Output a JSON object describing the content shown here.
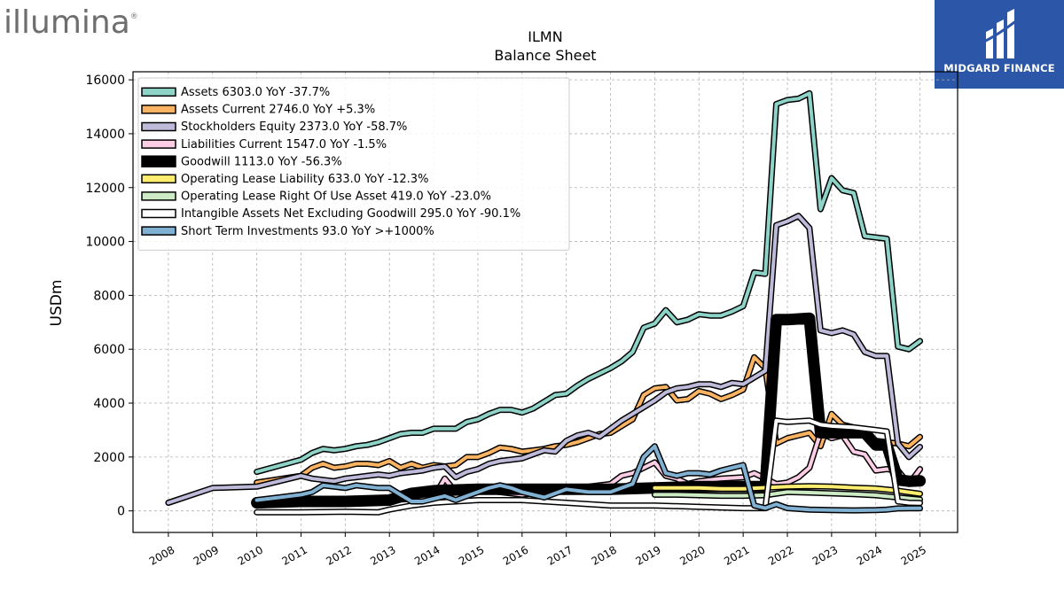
{
  "logos": {
    "left": "illumina",
    "right": "MIDGARD FINANCE"
  },
  "chart_data": {
    "type": "line",
    "title": "ILMN",
    "subtitle": "Balance  Sheet",
    "ylabel": "USDm",
    "xlabel": "",
    "ylim": [
      -800,
      16300
    ],
    "xlim": [
      2007.2,
      2025.85
    ],
    "yticks": [
      0,
      2000,
      4000,
      6000,
      8000,
      10000,
      12000,
      14000,
      16000
    ],
    "xticks": [
      2008,
      2009,
      2010,
      2011,
      2012,
      2013,
      2014,
      2015,
      2016,
      2017,
      2018,
      2019,
      2020,
      2021,
      2022,
      2023,
      2024,
      2025
    ],
    "grid": true,
    "legend_position": "top-left",
    "series": [
      {
        "name": "Assets  6303.0 YoY -37.7%",
        "color": "#8dd3c7",
        "width": 4,
        "x": [
          2010.0,
          2011.0,
          2011.25,
          2011.5,
          2011.75,
          2012.0,
          2012.25,
          2012.5,
          2012.75,
          2013.0,
          2013.25,
          2013.5,
          2013.75,
          2014.0,
          2014.25,
          2014.5,
          2014.75,
          2015.0,
          2015.25,
          2015.5,
          2015.75,
          2016.0,
          2016.25,
          2016.5,
          2016.75,
          2017.0,
          2017.25,
          2017.5,
          2017.75,
          2018.0,
          2018.25,
          2018.5,
          2018.75,
          2019.0,
          2019.25,
          2019.5,
          2019.75,
          2020.0,
          2020.25,
          2020.5,
          2020.75,
          2021.0,
          2021.25,
          2021.5,
          2021.75,
          2022.0,
          2022.25,
          2022.5,
          2022.75,
          2023.0,
          2023.25,
          2023.5,
          2023.75,
          2024.0,
          2024.25,
          2024.5,
          2024.75,
          2025.0
        ],
        "values": [
          1450,
          1900,
          2150,
          2300,
          2250,
          2300,
          2400,
          2450,
          2550,
          2700,
          2850,
          2900,
          2900,
          3050,
          3050,
          3050,
          3300,
          3400,
          3600,
          3750,
          3750,
          3650,
          3800,
          4050,
          4300,
          4350,
          4650,
          4900,
          5100,
          5300,
          5550,
          5900,
          6800,
          6950,
          7450,
          7000,
          7100,
          7300,
          7250,
          7250,
          7400,
          7600,
          8850,
          8800,
          15100,
          15250,
          15300,
          15500,
          11200,
          12350,
          11900,
          11800,
          10200,
          10150,
          10100,
          6100,
          6000,
          6303
        ]
      },
      {
        "name": "Assets Current  2746.0 YoY +5.3%",
        "color": "#fdb462",
        "width": 4,
        "x": [
          2010.0,
          2011.0,
          2011.25,
          2011.5,
          2011.75,
          2012.0,
          2012.25,
          2012.5,
          2012.75,
          2013.0,
          2013.25,
          2013.5,
          2013.75,
          2014.0,
          2014.25,
          2014.5,
          2014.75,
          2015.0,
          2015.25,
          2015.5,
          2015.75,
          2016.0,
          2016.25,
          2016.5,
          2016.75,
          2017.0,
          2017.25,
          2017.5,
          2017.75,
          2018.0,
          2018.25,
          2018.5,
          2018.75,
          2019.0,
          2019.25,
          2019.5,
          2019.75,
          2020.0,
          2020.25,
          2020.5,
          2020.75,
          2021.0,
          2021.25,
          2021.5,
          2021.75,
          2022.0,
          2022.25,
          2022.5,
          2022.75,
          2023.0,
          2023.25,
          2023.5,
          2023.75,
          2024.0,
          2024.25,
          2024.5,
          2024.75,
          2025.0
        ],
        "values": [
          1050,
          1300,
          1600,
          1750,
          1600,
          1650,
          1750,
          1750,
          1700,
          1850,
          1600,
          1750,
          1600,
          1700,
          1650,
          1700,
          2000,
          2000,
          2150,
          2350,
          2300,
          2200,
          2250,
          2300,
          2400,
          2450,
          2550,
          2700,
          2850,
          2900,
          3150,
          3400,
          4300,
          4550,
          4600,
          4100,
          4150,
          4450,
          4350,
          4150,
          4300,
          4500,
          5700,
          5300,
          2500,
          2700,
          2800,
          2900,
          2400,
          3600,
          3200,
          3100,
          2900,
          2600,
          2550,
          2500,
          2400,
          2746
        ]
      },
      {
        "name": "Stockholders Equity  2373.0 YoY -58.7%",
        "color": "#bebada",
        "width": 4,
        "x": [
          2008.0,
          2009.0,
          2010.0,
          2011.0,
          2011.25,
          2011.5,
          2011.75,
          2012.0,
          2012.25,
          2012.5,
          2012.75,
          2013.0,
          2013.25,
          2013.5,
          2013.75,
          2014.0,
          2014.25,
          2014.5,
          2014.75,
          2015.0,
          2015.25,
          2015.5,
          2015.75,
          2016.0,
          2016.25,
          2016.5,
          2016.75,
          2017.0,
          2017.25,
          2017.5,
          2017.75,
          2018.0,
          2018.25,
          2018.5,
          2018.75,
          2019.0,
          2019.25,
          2019.5,
          2019.75,
          2020.0,
          2020.25,
          2020.5,
          2020.75,
          2021.0,
          2021.25,
          2021.5,
          2021.75,
          2022.0,
          2022.25,
          2022.5,
          2022.75,
          2023.0,
          2023.25,
          2023.5,
          2023.75,
          2024.0,
          2024.25,
          2024.5,
          2024.75,
          2025.0
        ],
        "values": [
          300,
          850,
          900,
          1300,
          1200,
          1150,
          1100,
          1200,
          1250,
          1300,
          1350,
          1300,
          1400,
          1450,
          1500,
          1600,
          1650,
          1250,
          1450,
          1550,
          1750,
          1850,
          1900,
          1950,
          2100,
          2250,
          2200,
          2600,
          2800,
          2900,
          2750,
          3050,
          3350,
          3600,
          3850,
          4100,
          4400,
          4550,
          4600,
          4700,
          4700,
          4600,
          4750,
          4700,
          4950,
          5200,
          10600,
          10750,
          10950,
          10500,
          6700,
          6600,
          6700,
          6550,
          5900,
          5750,
          5750,
          2500,
          2000,
          2373
        ]
      },
      {
        "name": "Liabilities Current  1547.0 YoY -1.5%",
        "color": "#fccde5",
        "width": 4,
        "x": [
          2010.0,
          2011.0,
          2011.5,
          2012.0,
          2012.5,
          2013.0,
          2013.5,
          2014.0,
          2014.25,
          2014.5,
          2014.75,
          2015.0,
          2015.5,
          2016.0,
          2016.5,
          2017.0,
          2017.5,
          2018.0,
          2018.25,
          2018.5,
          2018.75,
          2019.0,
          2019.25,
          2019.5,
          2019.75,
          2020.0,
          2020.5,
          2021.0,
          2021.25,
          2021.5,
          2021.75,
          2022.0,
          2022.25,
          2022.5,
          2022.75,
          2023.0,
          2023.25,
          2023.5,
          2023.75,
          2024.0,
          2024.25,
          2024.5,
          2024.75,
          2025.0
        ],
        "values": [
          200,
          300,
          300,
          350,
          350,
          400,
          450,
          500,
          1200,
          700,
          700,
          800,
          700,
          600,
          700,
          750,
          900,
          1000,
          1300,
          1400,
          1600,
          1800,
          1300,
          1200,
          1000,
          1100,
          1200,
          1250,
          1400,
          1200,
          1000,
          1050,
          1250,
          1600,
          2900,
          2700,
          2800,
          2200,
          2100,
          1500,
          1550,
          1500,
          1000,
          1547
        ]
      },
      {
        "name": "Goodwill  1113.0 YoY -56.3%",
        "color": "#000000",
        "width": 10,
        "x": [
          2010.0,
          2011.0,
          2012.0,
          2013.0,
          2013.5,
          2014.0,
          2015.0,
          2016.0,
          2017.0,
          2018.0,
          2019.0,
          2020.0,
          2021.0,
          2021.5,
          2021.75,
          2022.0,
          2022.5,
          2022.75,
          2023.0,
          2023.5,
          2023.75,
          2024.0,
          2024.25,
          2024.5,
          2024.75,
          2025.0
        ],
        "values": [
          300,
          350,
          350,
          400,
          650,
          750,
          800,
          800,
          800,
          800,
          850,
          900,
          900,
          900,
          7100,
          7100,
          7150,
          2900,
          2900,
          2900,
          2900,
          2450,
          2450,
          1150,
          1100,
          1113
        ]
      },
      {
        "name": "Operating Lease Liability  633.0 YoY -12.3%",
        "color": "#ffed6f",
        "width": 4,
        "x": [
          2019.0,
          2019.5,
          2020.0,
          2020.5,
          2021.0,
          2021.5,
          2022.0,
          2022.5,
          2023.0,
          2023.5,
          2024.0,
          2024.5,
          2025.0
        ],
        "values": [
          850,
          850,
          850,
          820,
          820,
          860,
          900,
          920,
          900,
          860,
          830,
          750,
          633
        ]
      },
      {
        "name": "Operating Lease Right Of Use Asset  419.0 YoY -23.0%",
        "color": "#ccebc5",
        "width": 4,
        "x": [
          2019.0,
          2019.5,
          2020.0,
          2020.5,
          2021.0,
          2021.5,
          2022.0,
          2022.5,
          2023.0,
          2023.5,
          2024.0,
          2024.5,
          2025.0
        ],
        "values": [
          600,
          600,
          580,
          560,
          560,
          580,
          700,
          680,
          650,
          620,
          580,
          500,
          419
        ]
      },
      {
        "name": "Intangible Assets Net Excluding Goodwill  295.0 YoY -90.1%",
        "color": "#ffffff",
        "width": 4,
        "x": [
          2010.0,
          2011.0,
          2012.0,
          2012.75,
          2013.0,
          2013.5,
          2014.0,
          2015.0,
          2016.0,
          2017.0,
          2018.0,
          2019.0,
          2020.0,
          2021.0,
          2021.5,
          2021.75,
          2022.0,
          2022.5,
          2022.75,
          2023.0,
          2023.5,
          2024.0,
          2024.25,
          2024.5,
          2024.75,
          2025.0
        ],
        "values": [
          -50,
          -50,
          -30,
          -50,
          50,
          200,
          300,
          400,
          400,
          300,
          200,
          200,
          150,
          100,
          100,
          3350,
          3300,
          3350,
          3200,
          3150,
          3100,
          3000,
          2950,
          350,
          300,
          295
        ]
      },
      {
        "name": "Short Term Investments  93.0 YoY >+1000%",
        "color": "#80b1d3",
        "width": 4,
        "x": [
          2010.0,
          2010.5,
          2011.0,
          2011.25,
          2011.5,
          2011.75,
          2012.0,
          2012.25,
          2012.5,
          2012.75,
          2013.0,
          2013.25,
          2013.5,
          2013.75,
          2014.0,
          2014.25,
          2014.5,
          2014.75,
          2015.0,
          2015.25,
          2015.5,
          2015.75,
          2016.0,
          2016.25,
          2016.5,
          2016.75,
          2017.0,
          2017.25,
          2017.5,
          2017.75,
          2018.0,
          2018.25,
          2018.5,
          2018.75,
          2019.0,
          2019.25,
          2019.5,
          2019.75,
          2020.0,
          2020.25,
          2020.5,
          2020.75,
          2021.0,
          2021.25,
          2021.5,
          2021.75,
          2022.0,
          2022.5,
          2023.0,
          2023.5,
          2024.0,
          2024.25,
          2024.5,
          2024.75,
          2025.0
        ],
        "values": [
          400,
          500,
          600,
          700,
          950,
          900,
          850,
          950,
          900,
          850,
          850,
          600,
          350,
          350,
          450,
          550,
          400,
          550,
          700,
          850,
          950,
          850,
          700,
          600,
          500,
          650,
          800,
          750,
          700,
          700,
          700,
          850,
          1000,
          2000,
          2400,
          1400,
          1300,
          1400,
          1400,
          1350,
          1500,
          1600,
          1700,
          200,
          100,
          250,
          100,
          50,
          30,
          20,
          30,
          50,
          90,
          93,
          93
        ]
      }
    ]
  }
}
